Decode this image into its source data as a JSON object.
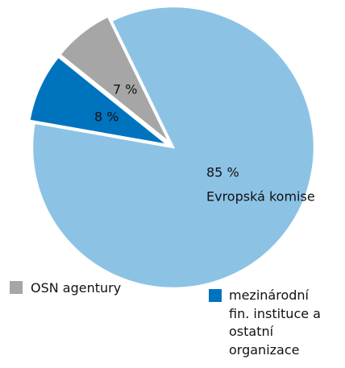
{
  "chart_data": {
    "type": "pie",
    "categories": [
      "Evropská komise",
      "mezinárodní fin. instituce a ostatní organizace",
      "OSN agentury"
    ],
    "values": [
      85,
      8,
      7
    ],
    "value_labels": [
      "85 %",
      "8 %",
      "7 %"
    ],
    "colors": [
      "#8cc3e5",
      "#0073be",
      "#a6a6a6"
    ]
  }
}
